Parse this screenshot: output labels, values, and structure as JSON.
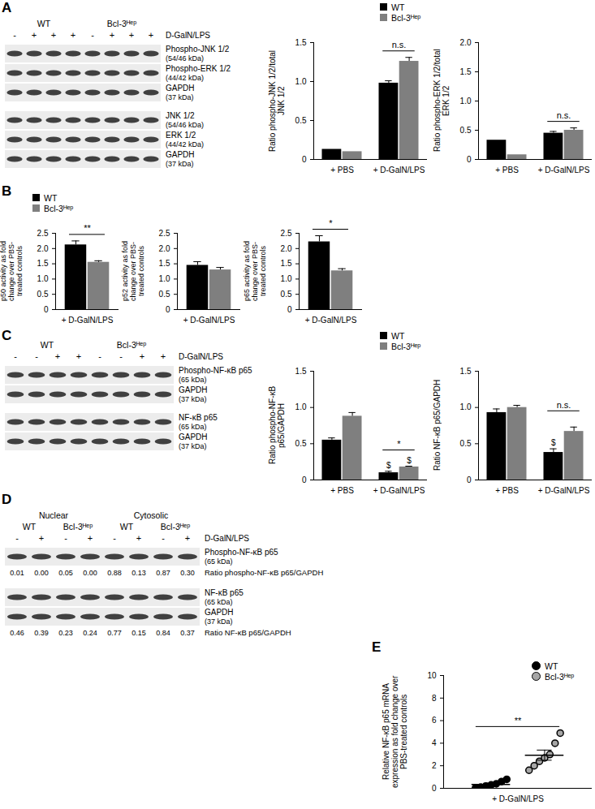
{
  "panels": [
    "A",
    "B",
    "C",
    "D",
    "E"
  ],
  "blots": [
    {
      "groups": [
        {
          "label": "WT",
          "treatments": [
            "-",
            "+",
            "+",
            "+"
          ]
        },
        {
          "label": "Bcl-3ᴴᵉᵖ",
          "treatments": [
            "-",
            "+",
            "+",
            "+"
          ]
        }
      ],
      "treatment_label": "D-GalN/LPS",
      "sections": [
        [
          {
            "protein": "Phospho-JNK 1/2",
            "size": "(54/46 kDa)"
          },
          {
            "protein": "Phospho-ERK 1/2",
            "size": "(44/42 kDa)"
          },
          {
            "protein": "GAPDH",
            "size": "(37 kDa)"
          }
        ],
        [
          {
            "protein": "JNK 1/2",
            "size": "(54/46 kDa)"
          },
          {
            "protein": "ERK 1/2",
            "size": "(44/42 kDa)"
          },
          {
            "protein": "GAPDH",
            "size": "(37 kDa)"
          }
        ]
      ]
    },
    {
      "groups": [
        {
          "label": "WT",
          "treatments": [
            "-",
            "-",
            "+",
            "+"
          ]
        },
        {
          "label": "Bcl-3ᴴᵉᵖ",
          "treatments": [
            "-",
            "-",
            "+",
            "+"
          ]
        }
      ],
      "treatment_label": "D-GalN/LPS",
      "sections": [
        [
          {
            "protein": "Phospho-NF-κB p65",
            "size": "(65 kDa)"
          },
          {
            "protein": "GAPDH",
            "size": "(37 kDa)"
          }
        ],
        [
          {
            "protein": "NF-κB p65",
            "size": "(65 kDa)"
          },
          {
            "protein": "GAPDH",
            "size": "(37 kDa)"
          }
        ]
      ]
    },
    {
      "groups": [
        {
          "label": "Nuclear",
          "groups": [
            {
              "label": "WT",
              "treatments": [
                "-",
                "+"
              ]
            },
            {
              "label": "Bcl-3ᴴᵉᵖ",
              "treatments": [
                "-",
                "+"
              ]
            }
          ]
        },
        {
          "label": "Cytosolic",
          "groups": [
            {
              "label": "WT",
              "treatments": [
                "-",
                "+"
              ]
            },
            {
              "label": "Bcl-3ᴴᵉᵖ",
              "treatments": [
                "-",
                "+"
              ]
            }
          ]
        }
      ],
      "treatment_label": "D-GalN/LPS",
      "sections": [
        [
          {
            "protein": "Phospho-NF-κB p65",
            "size": "(65 kDa)"
          },
          {
            "ratio_label": "Ratio phospho-NF-κB p65/GAPDH",
            "ratios": [
              "0.01",
              "0.00",
              "0.05",
              "0.00",
              "0.88",
              "0.13",
              "0.87",
              "0.30"
            ]
          }
        ],
        [
          {
            "protein": "NF-κB p65",
            "size": "(65 kDa)"
          },
          {
            "protein": "GAPDH",
            "size": "(37 kDa)"
          },
          {
            "ratio_label": "Ratio NF-κB p65/GAPDH",
            "ratios": [
              "0.46",
              "0.39",
              "0.23",
              "0.24",
              "0.77",
              "0.15",
              "0.84",
              "0.37"
            ]
          }
        ]
      ]
    }
  ],
  "chart_data": [
    {
      "type": "bar",
      "y_label": "Ratio phospho-JNK 1/2/total JNK 1/2",
      "categories": [
        "+ PBS",
        "+ D-GalN/LPS"
      ],
      "series": [
        {
          "name": "WT",
          "color": "#000000",
          "values": [
            0.13,
            0.98
          ],
          "errors": [
            null,
            0.03
          ]
        },
        {
          "name": "Bcl-3ᴴᵉᵖ",
          "color": "#7f7f7f",
          "values": [
            0.1,
            1.26
          ],
          "errors": [
            null,
            0.05
          ]
        }
      ],
      "ylim": [
        0,
        1.5
      ],
      "yticks": [
        0,
        0.5,
        {
          "value": 1,
          "label": "1.0"
        },
        1.5
      ],
      "annotations": [
        {
          "category": "+ D-GalN/LPS",
          "text": "n.s."
        }
      ],
      "legend": "top"
    },
    {
      "type": "bar",
      "y_label": "Ratio phospho-ERK 1/2/total ERK 1/2",
      "categories": [
        "+ PBS",
        "+ D-GalN/LPS"
      ],
      "series": [
        {
          "name": "WT",
          "color": "#000000",
          "values": [
            0.33,
            0.45
          ],
          "errors": [
            null,
            0.03
          ]
        },
        {
          "name": "Bcl-3ᴴᵉᵖ",
          "color": "#7f7f7f",
          "values": [
            0.08,
            0.5
          ],
          "errors": [
            null,
            0.04
          ]
        }
      ],
      "ylim": [
        0,
        2
      ],
      "yticks": [
        0,
        0.5,
        {
          "value": 1,
          "label": "1.0"
        },
        1.5,
        {
          "value": 2,
          "label": "2.0"
        }
      ],
      "annotations": [
        {
          "category": "+ D-GalN/LPS",
          "text": "n.s."
        }
      ]
    },
    {
      "type": "bar",
      "y_label": "p50 activity as fold change over PBS-treated controls",
      "categories": [
        "+ D-GalN/LPS"
      ],
      "series": [
        {
          "name": "WT",
          "color": "#000000",
          "values": [
            2.12
          ],
          "errors": [
            0.13
          ]
        },
        {
          "name": "Bcl-3ᴴᵉᵖ",
          "color": "#7f7f7f",
          "values": [
            1.55
          ],
          "errors": [
            0.05
          ]
        }
      ],
      "ylim": [
        0,
        2.5
      ],
      "yticks": [
        0,
        0.5,
        {
          "value": 1,
          "label": "1.0"
        },
        1.5,
        {
          "value": 2,
          "label": "2.0"
        },
        2.5
      ],
      "annotations": [
        {
          "category": "+ D-GalN/LPS",
          "text": "**"
        }
      ],
      "legend": "top-left"
    },
    {
      "type": "bar",
      "y_label": "p52 activity as fold change over PBS-treated controls",
      "categories": [
        "+ D-GalN/LPS"
      ],
      "series": [
        {
          "name": "WT",
          "color": "#000000",
          "values": [
            1.45
          ],
          "errors": [
            0.12
          ]
        },
        {
          "name": "Bcl-3ᴴᵉᵖ",
          "color": "#7f7f7f",
          "values": [
            1.3
          ],
          "errors": [
            0.08
          ]
        }
      ],
      "ylim": [
        0,
        2.5
      ],
      "yticks": [
        0,
        0.5,
        {
          "value": 1,
          "label": "1.0"
        },
        1.5,
        {
          "value": 2,
          "label": "2.0"
        },
        2.5
      ]
    },
    {
      "type": "bar",
      "y_label": "p65 activity as fold change over PBS-treated controls",
      "categories": [
        "+ D-GalN/LPS"
      ],
      "series": [
        {
          "name": "WT",
          "color": "#000000",
          "values": [
            2.22
          ],
          "errors": [
            0.2
          ]
        },
        {
          "name": "Bcl-3ᴴᵉᵖ",
          "color": "#7f7f7f",
          "values": [
            1.27
          ],
          "errors": [
            0.07
          ]
        }
      ],
      "ylim": [
        0,
        2.5
      ],
      "yticks": [
        0,
        0.5,
        {
          "value": 1,
          "label": "1.0"
        },
        1.5,
        {
          "value": 2,
          "label": "2.0"
        },
        2.5
      ],
      "annotations": [
        {
          "category": "+ D-GalN/LPS",
          "text": "*"
        }
      ]
    },
    {
      "type": "bar",
      "y_label": "Ratio phospho-NF-κB p65/GAPDH",
      "categories": [
        "+ PBS",
        "+ D-GalN/LPS"
      ],
      "series": [
        {
          "name": "WT",
          "color": "#000000",
          "values": [
            0.55,
            0.1
          ],
          "errors": [
            0.03,
            0.02
          ]
        },
        {
          "name": "Bcl-3ᴴᵉᵖ",
          "color": "#7f7f7f",
          "values": [
            0.88,
            0.18
          ],
          "errors": [
            0.05,
            0.01
          ]
        }
      ],
      "ylim": [
        0,
        1.5
      ],
      "yticks": [
        0,
        0.5,
        {
          "value": 1,
          "label": "1.0"
        },
        1.5
      ],
      "annotations": [
        {
          "category": "+ D-GalN/LPS",
          "text": "*"
        }
      ],
      "bar_annotations": [
        {
          "category": "+ D-GalN/LPS",
          "series": "WT",
          "text": "$"
        },
        {
          "category": "+ D-GalN/LPS",
          "series": "Bcl-3ᴴᵉᵖ",
          "text": "$"
        }
      ],
      "legend": "top"
    },
    {
      "type": "bar",
      "y_label": "Ratio NF-κB p65/GAPDH",
      "categories": [
        "+ PBS",
        "+ D-GalN/LPS"
      ],
      "series": [
        {
          "name": "WT",
          "color": "#000000",
          "values": [
            0.93,
            0.38
          ],
          "errors": [
            0.05,
            0.05
          ]
        },
        {
          "name": "Bcl-3ᴴᵉᵖ",
          "color": "#7f7f7f",
          "values": [
            1.0,
            0.67
          ],
          "errors": [
            0.03,
            0.06
          ]
        }
      ],
      "ylim": [
        0,
        1.5
      ],
      "yticks": [
        0,
        0.5,
        {
          "value": 1,
          "label": "1.0"
        },
        1.5
      ],
      "annotations": [
        {
          "category": "+ D-GalN/LPS",
          "text": "n.s."
        }
      ],
      "bar_annotations": [
        {
          "category": "+ D-GalN/LPS",
          "series": "WT",
          "text": "$"
        }
      ]
    },
    {
      "type": "scatter",
      "marker": "circle",
      "y_label": "Relative NF-κB p65 mRNA expression as fold change over PBS-treated controls",
      "categories": [
        "+ D-GalN/LPS"
      ],
      "series": [
        {
          "name": "WT",
          "color": "#000000",
          "values": [
            [
              0.05,
              0.1,
              0.2,
              0.3,
              0.4,
              0.6,
              0.8
            ]
          ],
          "mean": [
            0.35
          ],
          "error": [
            0.1
          ]
        },
        {
          "name": "Bcl-3ᴴᵉᵖ",
          "color": "#a6a6a6",
          "values": [
            [
              1.6,
              2.0,
              2.4,
              2.7,
              3.0,
              4.0,
              4.9
            ]
          ],
          "mean": [
            2.94
          ],
          "error": [
            0.45
          ]
        }
      ],
      "ylim": [
        0,
        10
      ],
      "yticks": [
        0,
        2,
        4,
        6,
        8,
        10
      ],
      "annotations": [
        {
          "category": "+ D-GalN/LPS",
          "text": "**"
        }
      ],
      "legend": "top-right"
    }
  ]
}
